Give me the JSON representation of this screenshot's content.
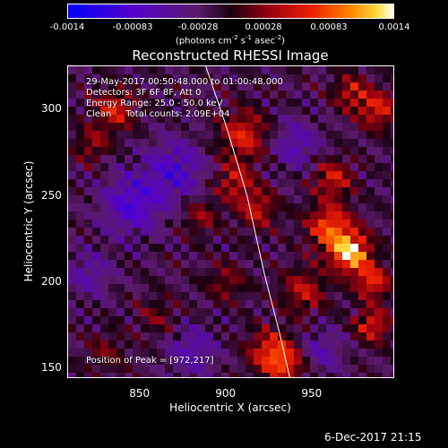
{
  "colorbar": {
    "ticks": [
      "-0.0014",
      "-0.00083",
      "-0.00028",
      "0.00028",
      "0.00083",
      "0.0014"
    ],
    "unit_text": "(photons cm",
    "unit_exp1": "-2",
    "unit_mid1": " s",
    "unit_exp2": "-1",
    "unit_mid2": " asec",
    "unit_exp3": "-2",
    "unit_end": ")",
    "range": [
      -0.0014,
      0.0014
    ]
  },
  "annotations": {
    "time": "29-May-2017 00:50:48.000 to 01:00:48.000",
    "detectors": "Detectors: 3F 6F 8F, Att 0",
    "energy": "Energy Range: 25.0 - 50.0 keV",
    "method": "Clean     Total counts: 2.09E+04",
    "peak": "Position of Peak = [972,217]"
  },
  "footer": {
    "date": "6-Dec-2017 21:15"
  },
  "chart_data": {
    "type": "heatmap",
    "title": "Reconstructed RHESSI Image",
    "xlabel": "Heliocentric X (arcsec)",
    "ylabel": "Heliocentric Y (arcsec)",
    "x_ticks": [
      "850",
      "900",
      "950"
    ],
    "y_ticks": [
      "150",
      "200",
      "250",
      "300"
    ],
    "xlim": [
      808,
      998
    ],
    "ylim": [
      144,
      325
    ],
    "peak": [
      972,
      217
    ],
    "limb_curve": {
      "x": [
        888,
        900,
        912,
        922,
        931,
        937
      ],
      "y": [
        325,
        290,
        250,
        205,
        170,
        144
      ]
    },
    "blobs": [
      {
        "x": 972,
        "y": 217,
        "sigma": 8,
        "amp": 1.0
      },
      {
        "x": 960,
        "y": 232,
        "sigma": 9,
        "amp": 0.7
      },
      {
        "x": 985,
        "y": 200,
        "sigma": 7,
        "amp": 0.6
      },
      {
        "x": 962,
        "y": 260,
        "sigma": 8,
        "amp": 0.5
      },
      {
        "x": 945,
        "y": 195,
        "sigma": 9,
        "amp": 0.45
      },
      {
        "x": 985,
        "y": 175,
        "sigma": 7,
        "amp": 0.55
      },
      {
        "x": 988,
        "y": 300,
        "sigma": 8,
        "amp": 0.55
      },
      {
        "x": 972,
        "y": 310,
        "sigma": 7,
        "amp": 0.45
      },
      {
        "x": 910,
        "y": 285,
        "sigma": 10,
        "amp": 0.55
      },
      {
        "x": 905,
        "y": 258,
        "sigma": 8,
        "amp": 0.45
      },
      {
        "x": 918,
        "y": 242,
        "sigma": 8,
        "amp": 0.45
      },
      {
        "x": 925,
        "y": 160,
        "sigma": 9,
        "amp": 0.55
      },
      {
        "x": 935,
        "y": 152,
        "sigma": 8,
        "amp": 0.5
      },
      {
        "x": 835,
        "y": 300,
        "sigma": 8,
        "amp": 0.55
      },
      {
        "x": 822,
        "y": 280,
        "sigma": 7,
        "amp": 0.35
      },
      {
        "x": 885,
        "y": 238,
        "sigma": 7,
        "amp": 0.35
      },
      {
        "x": 900,
        "y": 200,
        "sigma": 8,
        "amp": 0.3
      },
      {
        "x": 860,
        "y": 180,
        "sigma": 8,
        "amp": 0.25
      },
      {
        "x": 830,
        "y": 160,
        "sigma": 8,
        "amp": 0.25
      },
      {
        "x": 845,
        "y": 245,
        "sigma": 12,
        "amp": -0.5
      },
      {
        "x": 870,
        "y": 265,
        "sigma": 12,
        "amp": -0.45
      },
      {
        "x": 940,
        "y": 280,
        "sigma": 10,
        "amp": -0.35
      },
      {
        "x": 955,
        "y": 160,
        "sigma": 9,
        "amp": -0.3
      },
      {
        "x": 880,
        "y": 160,
        "sigma": 10,
        "amp": -0.35
      },
      {
        "x": 820,
        "y": 205,
        "sigma": 9,
        "amp": -0.3
      }
    ]
  }
}
